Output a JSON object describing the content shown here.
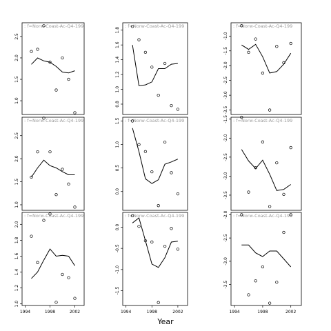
{
  "figure": {
    "xlabel": "Year",
    "strip_text": ": f=Norw-Coast-Ac-Q4-199"
  },
  "chart_data": [
    {
      "type": "line",
      "panel": "row1-col1",
      "xlim": [
        1993.5,
        2003.5
      ],
      "ylim": [
        0.68,
        2.82
      ],
      "yticks": [
        1.0,
        1.5,
        2.0,
        2.5
      ],
      "xticks": [
        1994,
        1998,
        2002
      ],
      "points": {
        "x": [
          1995,
          1996,
          1997,
          1998,
          1999,
          2000,
          2001,
          2002
        ],
        "y": [
          2.15,
          2.2,
          2.75,
          1.9,
          1.25,
          2.0,
          1.5,
          0.72
        ]
      },
      "line": {
        "x": [
          1995,
          1996,
          1997,
          1998,
          1999,
          2000,
          2001,
          2002
        ],
        "y": [
          1.85,
          2.0,
          1.93,
          1.9,
          1.8,
          1.67,
          1.65,
          1.7
        ]
      }
    },
    {
      "type": "line",
      "panel": "row1-col2",
      "xlim": [
        1993.5,
        2003.5
      ],
      "ylim": [
        0.66,
        1.9
      ],
      "yticks": [
        0.8,
        1.0,
        1.2,
        1.4,
        1.6,
        1.8
      ],
      "xticks": [
        1994,
        1998,
        2002
      ],
      "points": {
        "x": [
          1995,
          1996,
          1997,
          1998,
          1999,
          2000,
          2001,
          2002
        ],
        "y": [
          1.85,
          1.67,
          1.5,
          1.3,
          0.92,
          1.35,
          0.78,
          0.73
        ]
      },
      "line": {
        "x": [
          1995,
          1996,
          1997,
          1998,
          1999,
          2000,
          2001,
          2002
        ],
        "y": [
          1.6,
          1.05,
          1.06,
          1.1,
          1.28,
          1.28,
          1.34,
          1.35
        ]
      }
    },
    {
      "type": "line",
      "panel": "row1-col3",
      "xlim": [
        1993.5,
        2003.5
      ],
      "ylim": [
        -3.65,
        -0.55
      ],
      "yticks": [
        -3.5,
        -3.0,
        -2.5,
        -2.0,
        -1.5,
        -1.0
      ],
      "xticks": [
        1994,
        1998,
        2002
      ],
      "points": {
        "x": [
          1995,
          1996,
          1997,
          1998,
          1999,
          2000,
          2001,
          2002
        ],
        "y": [
          -0.65,
          -1.55,
          -1.1,
          -2.25,
          -3.5,
          -1.35,
          -1.9,
          -1.25
        ]
      },
      "line": {
        "x": [
          1995,
          1996,
          1997,
          1998,
          1999,
          2000,
          2001,
          2002
        ],
        "y": [
          -1.3,
          -1.45,
          -1.28,
          -1.7,
          -2.25,
          -2.2,
          -1.95,
          -1.58
        ]
      }
    },
    {
      "type": "line",
      "panel": "row2-col1",
      "xlim": [
        1993.5,
        2003.5
      ],
      "ylim": [
        0.88,
        2.9
      ],
      "yticks": [
        1.0,
        1.5,
        2.0,
        2.5
      ],
      "xticks": [
        1994,
        1998,
        2002
      ],
      "points": {
        "x": [
          1995,
          1996,
          1997,
          1998,
          1999,
          2000,
          2001,
          2002
        ],
        "y": [
          1.6,
          2.15,
          2.88,
          2.15,
          1.22,
          1.77,
          1.45,
          0.95
        ]
      },
      "line": {
        "x": [
          1995,
          1996,
          1997,
          1998,
          1999,
          2000,
          2001,
          2002
        ],
        "y": [
          1.6,
          1.8,
          1.97,
          1.85,
          1.8,
          1.72,
          1.65,
          1.65
        ]
      }
    },
    {
      "type": "line",
      "panel": "row2-col2",
      "xlim": [
        1993.5,
        2003.5
      ],
      "ylim": [
        -0.4,
        1.58
      ],
      "yticks": [
        0.0,
        0.5,
        1.0,
        1.5
      ],
      "xticks": [
        1994,
        1998,
        2002
      ],
      "points": {
        "x": [
          1995,
          1996,
          1997,
          1998,
          1999,
          2000,
          2001,
          2002
        ],
        "y": [
          1.5,
          1.0,
          0.85,
          0.42,
          -0.3,
          1.05,
          0.4,
          -0.05
        ]
      },
      "line": {
        "x": [
          1995,
          1996,
          1997,
          1998,
          1999,
          2000,
          2001,
          2002
        ],
        "y": [
          1.35,
          0.85,
          0.27,
          0.17,
          0.25,
          0.58,
          0.63,
          0.69
        ]
      }
    },
    {
      "type": "line",
      "panel": "row2-col3",
      "xlim": [
        1993.5,
        2003.5
      ],
      "ylim": [
        -3.9,
        -1.45
      ],
      "yticks": [
        -3.5,
        -3.0,
        -2.5,
        -2.0,
        -1.5
      ],
      "xticks": [
        1994,
        1998,
        2002
      ],
      "points": {
        "x": [
          1995,
          1996,
          1997,
          1998,
          1999,
          2000,
          2001,
          2002
        ],
        "y": [
          -1.45,
          -3.42,
          -2.78,
          -2.1,
          -3.8,
          -2.65,
          -3.48,
          -2.25
        ]
      },
      "line": {
        "x": [
          1995,
          1996,
          1997,
          1998,
          1999,
          2000,
          2001,
          2002
        ],
        "y": [
          -2.3,
          -2.6,
          -2.8,
          -2.58,
          -2.95,
          -3.38,
          -3.35,
          -3.22
        ]
      }
    },
    {
      "type": "line",
      "panel": "row3-col1",
      "xlim": [
        1993.5,
        2003.5
      ],
      "ylim": [
        0.98,
        2.15
      ],
      "yticks": [
        1.0,
        1.2,
        1.4,
        1.6,
        1.8,
        2.0
      ],
      "xticks": [
        1994,
        1998,
        2002
      ],
      "points": {
        "x": [
          1995,
          1996,
          1997,
          1998,
          1999,
          2000,
          2001,
          2002
        ],
        "y": [
          1.85,
          1.52,
          2.05,
          2.13,
          1.02,
          1.37,
          1.33,
          1.07
        ]
      },
      "line": {
        "x": [
          1995,
          1996,
          1997,
          1998,
          1999,
          2000,
          2001,
          2002
        ],
        "y": [
          1.32,
          1.4,
          1.55,
          1.69,
          1.6,
          1.61,
          1.6,
          1.48
        ]
      }
    },
    {
      "type": "line",
      "panel": "row3-col2",
      "xlim": [
        1993.5,
        2003.5
      ],
      "ylim": [
        -1.85,
        0.35
      ],
      "yticks": [
        -1.5,
        -1.0,
        -0.5,
        0.0
      ],
      "xticks": [
        1994,
        1998,
        2002
      ],
      "points": {
        "x": [
          1995,
          1996,
          1997,
          1998,
          1999,
          2000,
          2001,
          2002
        ],
        "y": [
          0.27,
          0.02,
          -0.32,
          -0.35,
          -1.78,
          -0.45,
          -0.03,
          -0.52
        ]
      },
      "line": {
        "x": [
          1995,
          1996,
          1997,
          1998,
          1999,
          2000,
          2001,
          2002
        ],
        "y": [
          0.1,
          0.22,
          -0.32,
          -0.87,
          -0.95,
          -0.72,
          -0.35,
          -0.33
        ]
      }
    },
    {
      "type": "line",
      "panel": "row3-col3",
      "xlim": [
        1993.5,
        2003.5
      ],
      "ylim": [
        -3.95,
        -1.95
      ],
      "yticks": [
        -3.5,
        -3.0,
        -2.5,
        -2.0
      ],
      "xticks": [
        1994,
        1998,
        2002
      ],
      "points": {
        "x": [
          1995,
          1996,
          1997,
          1998,
          1999,
          2000,
          2001,
          2002
        ],
        "y": [
          -2.0,
          -3.72,
          -3.42,
          -3.12,
          -3.9,
          -3.45,
          -2.38,
          -2.0
        ]
      },
      "line": {
        "x": [
          1995,
          1996,
          1997,
          1998,
          1999,
          2000,
          2001,
          2002
        ],
        "y": [
          -2.65,
          -2.65,
          -2.82,
          -2.9,
          -2.78,
          -2.78,
          -2.95,
          -3.12
        ]
      }
    }
  ]
}
